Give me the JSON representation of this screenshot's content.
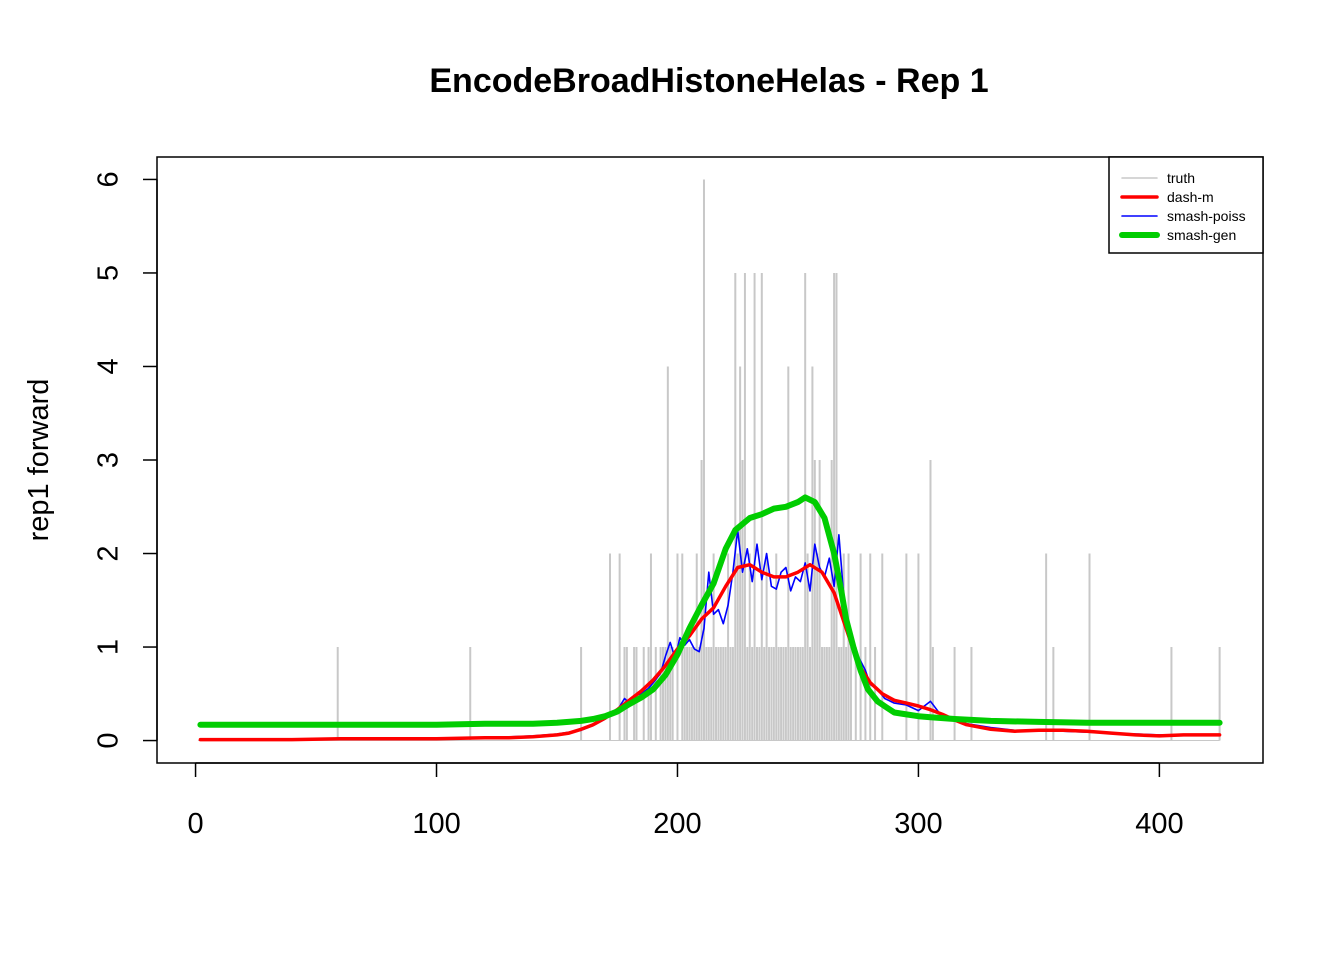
{
  "chart_data": {
    "type": "line",
    "title": "EncodeBroadHistoneHelas - Rep 1",
    "xlabel": "",
    "ylabel": "rep1 forward",
    "xlim": [
      -16,
      443
    ],
    "ylim": [
      -0.24,
      6.24
    ],
    "x_ticks": [
      0,
      100,
      200,
      300,
      400
    ],
    "y_ticks": [
      0,
      1,
      2,
      3,
      4,
      5,
      6
    ],
    "legend_position": "top-right",
    "grid": false,
    "truth_counts": [
      [
        59,
        1
      ],
      [
        114,
        1
      ],
      [
        160,
        1
      ],
      [
        172,
        2
      ],
      [
        176,
        2
      ],
      [
        178,
        1
      ],
      [
        179,
        1
      ],
      [
        182,
        1
      ],
      [
        183,
        1
      ],
      [
        186,
        1
      ],
      [
        188,
        1
      ],
      [
        189,
        2
      ],
      [
        191,
        1
      ],
      [
        193,
        1
      ],
      [
        194,
        1
      ],
      [
        195,
        1
      ],
      [
        196,
        4
      ],
      [
        197,
        1
      ],
      [
        198,
        1
      ],
      [
        200,
        2
      ],
      [
        202,
        2
      ],
      [
        203,
        1
      ],
      [
        204,
        1
      ],
      [
        205,
        1
      ],
      [
        206,
        1
      ],
      [
        207,
        1
      ],
      [
        208,
        2
      ],
      [
        209,
        1
      ],
      [
        210,
        3
      ],
      [
        211,
        6
      ],
      [
        212,
        1
      ],
      [
        213,
        1
      ],
      [
        214,
        1
      ],
      [
        215,
        2
      ],
      [
        216,
        1
      ],
      [
        217,
        1
      ],
      [
        218,
        1
      ],
      [
        219,
        1
      ],
      [
        220,
        1
      ],
      [
        221,
        2
      ],
      [
        222,
        1
      ],
      [
        223,
        1
      ],
      [
        224,
        5
      ],
      [
        225,
        2
      ],
      [
        226,
        4
      ],
      [
        227,
        3
      ],
      [
        228,
        5
      ],
      [
        229,
        1
      ],
      [
        230,
        2
      ],
      [
        231,
        1
      ],
      [
        232,
        5
      ],
      [
        233,
        1
      ],
      [
        234,
        1
      ],
      [
        235,
        5
      ],
      [
        236,
        1
      ],
      [
        237,
        2
      ],
      [
        238,
        1
      ],
      [
        239,
        1
      ],
      [
        240,
        1
      ],
      [
        241,
        2
      ],
      [
        242,
        1
      ],
      [
        243,
        1
      ],
      [
        244,
        1
      ],
      [
        245,
        1
      ],
      [
        246,
        4
      ],
      [
        247,
        1
      ],
      [
        248,
        1
      ],
      [
        249,
        1
      ],
      [
        250,
        1
      ],
      [
        251,
        1
      ],
      [
        252,
        1
      ],
      [
        253,
        5
      ],
      [
        254,
        2
      ],
      [
        255,
        1
      ],
      [
        256,
        4
      ],
      [
        257,
        3
      ],
      [
        258,
        2
      ],
      [
        259,
        3
      ],
      [
        260,
        1
      ],
      [
        261,
        1
      ],
      [
        262,
        1
      ],
      [
        263,
        1
      ],
      [
        264,
        3
      ],
      [
        265,
        5
      ],
      [
        266,
        5
      ],
      [
        267,
        1
      ],
      [
        268,
        1
      ],
      [
        269,
        2
      ],
      [
        270,
        1
      ],
      [
        271,
        2
      ],
      [
        272,
        1
      ],
      [
        274,
        1
      ],
      [
        276,
        2
      ],
      [
        278,
        1
      ],
      [
        280,
        2
      ],
      [
        282,
        1
      ],
      [
        285,
        2
      ],
      [
        295,
        2
      ],
      [
        300,
        2
      ],
      [
        305,
        3
      ],
      [
        306,
        1
      ],
      [
        315,
        1
      ],
      [
        322,
        1
      ],
      [
        353,
        2
      ],
      [
        356,
        1
      ],
      [
        371,
        2
      ],
      [
        405,
        1
      ],
      [
        425,
        1
      ]
    ],
    "series": [
      {
        "name": "truth",
        "color": "#c8c8c8",
        "style": "histogram"
      },
      {
        "name": "dash-m",
        "color": "#ff0000",
        "style": "line",
        "x": [
          2,
          20,
          40,
          60,
          80,
          100,
          120,
          130,
          140,
          150,
          155,
          160,
          165,
          170,
          175,
          180,
          185,
          190,
          195,
          200,
          205,
          210,
          215,
          220,
          225,
          230,
          235,
          240,
          245,
          250,
          255,
          260,
          265,
          270,
          275,
          280,
          285,
          290,
          295,
          300,
          305,
          310,
          315,
          320,
          330,
          340,
          350,
          360,
          370,
          380,
          390,
          400,
          410,
          420,
          425
        ],
        "y": [
          0.01,
          0.01,
          0.01,
          0.02,
          0.02,
          0.02,
          0.03,
          0.03,
          0.04,
          0.06,
          0.08,
          0.12,
          0.17,
          0.24,
          0.33,
          0.43,
          0.53,
          0.65,
          0.8,
          0.98,
          1.12,
          1.3,
          1.42,
          1.65,
          1.85,
          1.88,
          1.8,
          1.75,
          1.75,
          1.8,
          1.88,
          1.8,
          1.58,
          1.2,
          0.82,
          0.62,
          0.5,
          0.43,
          0.4,
          0.37,
          0.33,
          0.28,
          0.22,
          0.17,
          0.12,
          0.1,
          0.11,
          0.11,
          0.1,
          0.08,
          0.06,
          0.05,
          0.06,
          0.06,
          0.06
        ]
      },
      {
        "name": "smash-poiss",
        "color": "#0000ff",
        "style": "line",
        "x": [
          2,
          20,
          40,
          60,
          80,
          100,
          120,
          140,
          150,
          160,
          165,
          170,
          175,
          178,
          180,
          182,
          185,
          188,
          190,
          193,
          195,
          197,
          199,
          201,
          203,
          205,
          207,
          209,
          211,
          213,
          215,
          217,
          219,
          221,
          223,
          225,
          227,
          229,
          231,
          233,
          235,
          237,
          239,
          241,
          243,
          245,
          247,
          249,
          251,
          253,
          255,
          257,
          259,
          261,
          263,
          265,
          267,
          269,
          271,
          273,
          275,
          278,
          280,
          283,
          286,
          290,
          295,
          300,
          305,
          310,
          320,
          330,
          340,
          350,
          360,
          380,
          400,
          425
        ],
        "y": [
          0.01,
          0.01,
          0.01,
          0.02,
          0.02,
          0.02,
          0.03,
          0.05,
          0.07,
          0.11,
          0.16,
          0.23,
          0.32,
          0.45,
          0.4,
          0.48,
          0.5,
          0.56,
          0.62,
          0.72,
          0.9,
          1.05,
          0.88,
          1.1,
          1.02,
          1.08,
          0.98,
          0.95,
          1.2,
          1.8,
          1.35,
          1.4,
          1.25,
          1.45,
          1.8,
          2.25,
          1.8,
          2.05,
          1.7,
          2.1,
          1.72,
          2.0,
          1.65,
          1.62,
          1.8,
          1.85,
          1.6,
          1.75,
          1.7,
          1.9,
          1.6,
          2.1,
          1.85,
          1.75,
          1.95,
          1.65,
          2.2,
          1.55,
          1.2,
          1.0,
          0.9,
          0.75,
          0.6,
          0.55,
          0.45,
          0.4,
          0.38,
          0.32,
          0.42,
          0.25,
          0.18,
          0.14,
          0.11,
          0.1,
          0.1,
          0.08,
          0.06,
          0.06
        ]
      },
      {
        "name": "smash-gen",
        "color": "#00cd00",
        "style": "line",
        "x": [
          2,
          20,
          40,
          60,
          80,
          100,
          120,
          140,
          150,
          160,
          165,
          170,
          175,
          180,
          185,
          190,
          195,
          200,
          205,
          210,
          215,
          220,
          224,
          230,
          235,
          240,
          245,
          250,
          253,
          257,
          261,
          265,
          268,
          270,
          273,
          276,
          279,
          283,
          287,
          290,
          295,
          300,
          305,
          315,
          330,
          350,
          370,
          400,
          425
        ],
        "y": [
          0.17,
          0.17,
          0.17,
          0.17,
          0.17,
          0.17,
          0.18,
          0.18,
          0.19,
          0.21,
          0.23,
          0.26,
          0.31,
          0.39,
          0.46,
          0.55,
          0.7,
          0.92,
          1.2,
          1.45,
          1.68,
          2.05,
          2.25,
          2.38,
          2.42,
          2.48,
          2.5,
          2.55,
          2.6,
          2.55,
          2.38,
          2.0,
          1.6,
          1.3,
          1.0,
          0.75,
          0.55,
          0.42,
          0.35,
          0.3,
          0.28,
          0.26,
          0.25,
          0.23,
          0.21,
          0.2,
          0.19,
          0.19,
          0.19
        ]
      }
    ]
  }
}
